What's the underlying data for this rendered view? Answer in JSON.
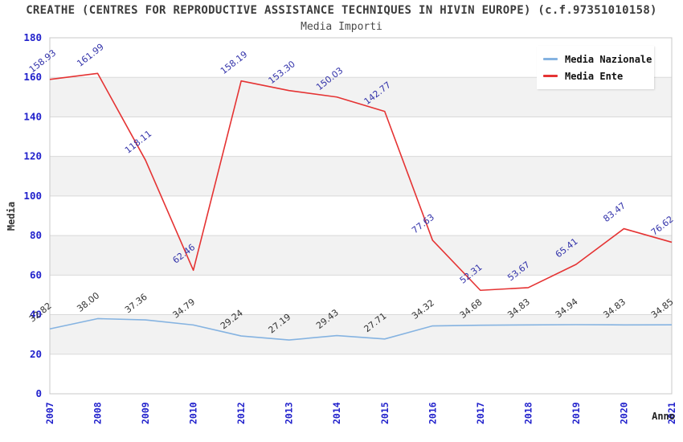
{
  "header": {
    "title": "CREATHE (CENTRES FOR REPRODUCTIVE ASSISTANCE TECHNIQUES IN HIVIN EUROPE) (c.f.97351010158)",
    "subtitle": "Media Importi"
  },
  "axes": {
    "y_title": "Media",
    "x_title": "Anno"
  },
  "legend": {
    "position": "top-right",
    "items": [
      {
        "label": "Media Nazionale",
        "color": "#85b3e1"
      },
      {
        "label": "Media Ente",
        "color": "#e53333"
      }
    ]
  },
  "chart_data": {
    "type": "line",
    "title": "Media Importi",
    "xlabel": "Anno",
    "ylabel": "Media",
    "categories": [
      "2007",
      "2008",
      "2009",
      "2010",
      "2012",
      "2013",
      "2014",
      "2015",
      "2016",
      "2017",
      "2018",
      "2019",
      "2020",
      "2021"
    ],
    "series": [
      {
        "name": "Media Nazionale",
        "color": "#85b3e1",
        "label_color": "#333333",
        "values": [
          32.82,
          38.0,
          37.36,
          34.79,
          29.24,
          27.19,
          29.43,
          27.71,
          34.32,
          34.68,
          34.83,
          34.94,
          34.83,
          34.85
        ],
        "labels": [
          "32.82",
          "38.00",
          "37.36",
          "34.79",
          "29.24",
          "27.19",
          "29.43",
          "27.71",
          "34.32",
          "34.68",
          "34.83",
          "34.94",
          "34.83",
          "34.85"
        ]
      },
      {
        "name": "Media Ente",
        "color": "#e53333",
        "label_color": "#3333aa",
        "values": [
          158.93,
          161.99,
          118.11,
          62.46,
          158.19,
          153.3,
          150.03,
          142.77,
          77.63,
          52.31,
          53.67,
          65.41,
          83.47,
          76.62
        ],
        "labels": [
          "158.93",
          "161.99",
          "118.11",
          "62.46",
          "158.19",
          "153.30",
          "150.03",
          "142.77",
          "77.63",
          "52.31",
          "53.67",
          "65.41",
          "83.47",
          "76.62"
        ]
      }
    ],
    "ylim": [
      0,
      180
    ],
    "ytick_step": 20,
    "grid": true,
    "legend_position": "top-right",
    "colors": {
      "tick_label": "#2222cc",
      "gridline": "#d9d9d9",
      "plot_border": "#c8c8c8",
      "band_alt": "#f2f2f2",
      "band_base": "#ffffff"
    }
  }
}
